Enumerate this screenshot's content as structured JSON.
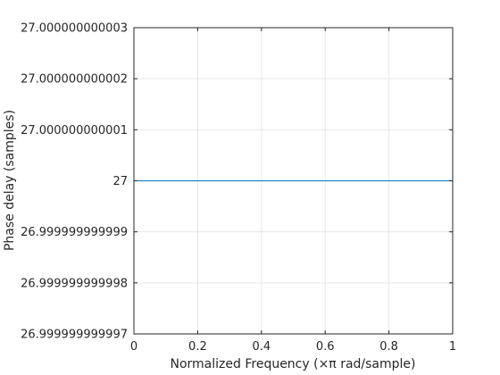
{
  "chart_data": {
    "type": "line",
    "xlabel": "Normalized Frequency  (×π rad/sample)",
    "ylabel": "Phase delay (samples)",
    "xlim": [
      0,
      1
    ],
    "ylim": [
      26.999999999997,
      27.000000000003
    ],
    "grid": true,
    "x_ticks": [
      "0",
      "0.2",
      "0.4",
      "0.6",
      "0.8",
      "1"
    ],
    "y_ticks": [
      "26.999999999997",
      "26.999999999998",
      "26.999999999999",
      "27",
      "27.000000000001",
      "27.000000000002",
      "27.000000000003"
    ],
    "series": [
      {
        "x": [
          0,
          1
        ],
        "y": [
          27,
          27
        ],
        "color": "#0072bd"
      }
    ]
  }
}
